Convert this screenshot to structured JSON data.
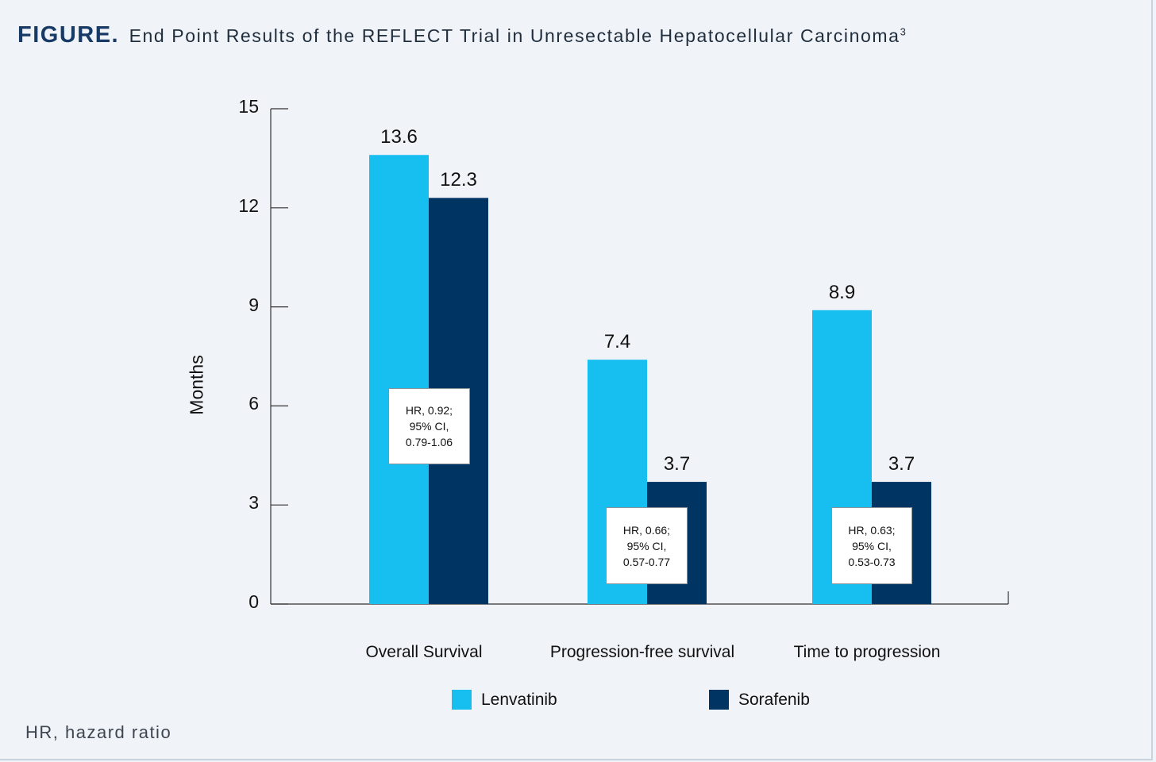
{
  "figure": {
    "label": "FIGURE.",
    "title": "End Point Results of the REFLECT Trial in Unresectable Hepatocellular Carcinoma",
    "title_superscript": "3",
    "footnote": "HR, hazard ratio"
  },
  "colors": {
    "lenvatinib": "#17bff0",
    "sorafenib": "#003462",
    "axis": "#333333"
  },
  "chart_data": {
    "type": "bar",
    "title": "End Point Results of the REFLECT Trial in Unresectable Hepatocellular Carcinoma",
    "xlabel": "",
    "ylabel": "Months",
    "ylim": [
      0,
      15
    ],
    "yticks": [
      0,
      3,
      6,
      9,
      12,
      15
    ],
    "categories": [
      "Overall Survival",
      "Progression-free survival",
      "Time to progression"
    ],
    "series": [
      {
        "name": "Lenvatinib",
        "values": [
          13.6,
          7.4,
          8.9
        ],
        "labels": [
          "13.6",
          "7.4",
          "8.9"
        ]
      },
      {
        "name": "Sorafenib",
        "values": [
          12.3,
          3.7,
          3.7
        ],
        "labels": [
          "12.3",
          "3.7",
          "3.7"
        ]
      }
    ],
    "annotations": [
      [
        "HR, 0.92;",
        "95% CI,",
        "0.79-1.06"
      ],
      [
        "HR, 0.66;",
        "95% CI,",
        "0.57-0.77"
      ],
      [
        "HR, 0.63;",
        "95% CI,",
        "0.53-0.73"
      ]
    ],
    "legend_position": "bottom-center"
  }
}
